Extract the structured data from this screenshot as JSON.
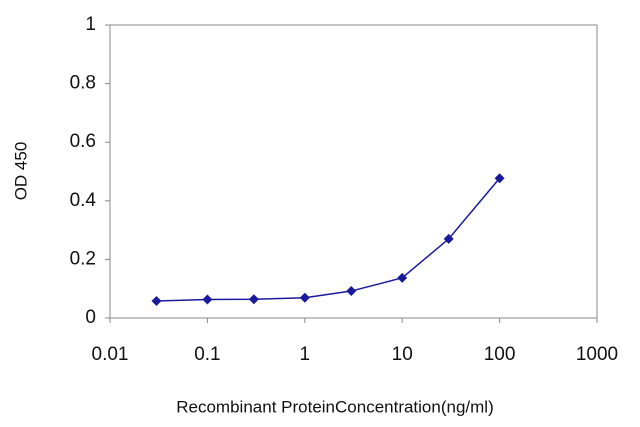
{
  "chart_data": {
    "type": "line",
    "xlabel": "Recombinant ProteinConcentration(ng/ml)",
    "ylabel": "OD 450",
    "xscale": "log",
    "x": [
      0.03,
      0.1,
      0.3,
      1,
      3,
      10,
      30,
      100
    ],
    "series": [
      {
        "color": "#1a1a9c",
        "values": [
          0.058,
          0.063,
          0.064,
          0.069,
          0.092,
          0.137,
          0.27,
          0.477
        ]
      }
    ],
    "xlim": [
      0.01,
      1000
    ],
    "xticks": [
      0.01,
      0.1,
      1,
      10,
      100,
      1000
    ],
    "ylim": [
      0,
      1
    ],
    "yticks": [
      0,
      0.2,
      0.4,
      0.6,
      0.8,
      1
    ],
    "grid": false
  }
}
